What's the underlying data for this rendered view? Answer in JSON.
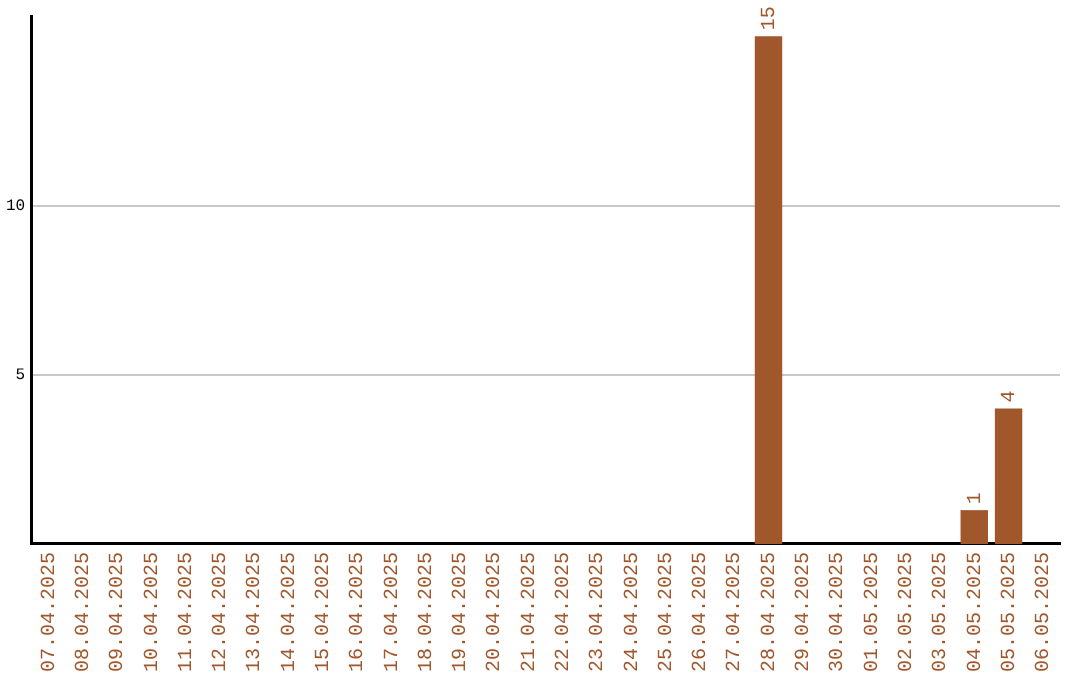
{
  "chart_data": {
    "type": "bar",
    "categories": [
      "07.04.2025",
      "08.04.2025",
      "09.04.2025",
      "10.04.2025",
      "11.04.2025",
      "12.04.2025",
      "13.04.2025",
      "14.04.2025",
      "15.04.2025",
      "16.04.2025",
      "17.04.2025",
      "18.04.2025",
      "19.04.2025",
      "20.04.2025",
      "21.04.2025",
      "22.04.2025",
      "23.04.2025",
      "24.04.2025",
      "25.04.2025",
      "26.04.2025",
      "27.04.2025",
      "28.04.2025",
      "29.04.2025",
      "30.04.2025",
      "01.05.2025",
      "02.05.2025",
      "03.05.2025",
      "04.05.2025",
      "05.05.2025",
      "06.05.2025"
    ],
    "values": [
      0,
      0,
      0,
      0,
      0,
      0,
      0,
      0,
      0,
      0,
      0,
      0,
      0,
      0,
      0,
      0,
      0,
      0,
      0,
      0,
      0,
      15,
      0,
      0,
      0,
      0,
      0,
      1,
      4,
      0
    ],
    "value_labels": [
      null,
      null,
      null,
      null,
      null,
      null,
      null,
      null,
      null,
      null,
      null,
      null,
      null,
      null,
      null,
      null,
      null,
      null,
      null,
      null,
      null,
      "15",
      null,
      null,
      null,
      null,
      null,
      "1",
      "4",
      null
    ],
    "color": "#a0572b",
    "ylim": [
      0,
      15.6
    ],
    "yticks": [
      5,
      10
    ],
    "grid": "y",
    "legend": false
  }
}
